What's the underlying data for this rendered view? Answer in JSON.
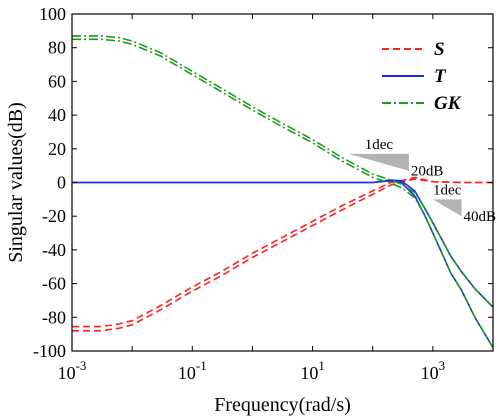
{
  "chart_data": {
    "type": "line",
    "xlabel": "Frequency(rad/s)",
    "ylabel": "Singular values(dB)",
    "xscale": "log",
    "xlim": [
      0.001,
      10000
    ],
    "ylim": [
      -100,
      100
    ],
    "yticks": [
      -100,
      -80,
      -60,
      -40,
      -20,
      0,
      20,
      40,
      60,
      80,
      100
    ],
    "ytick_labels": [
      "-100",
      "-80",
      "-60",
      "-40",
      "-20",
      "0",
      "20",
      "40",
      "60",
      "80",
      "100"
    ],
    "xticks": [
      0.001,
      0.1,
      10,
      1000
    ],
    "xtick_labels": [
      {
        "base": "10",
        "exp": "-3"
      },
      {
        "base": "10",
        "exp": "-1"
      },
      {
        "base": "10",
        "exp": "1"
      },
      {
        "base": "10",
        "exp": "3"
      }
    ],
    "legend_position": "top-right",
    "grid": false,
    "series": [
      {
        "name": "S",
        "color": "#ff2020",
        "style": "dashed",
        "lines": [
          {
            "x": [
              0.001,
              0.003,
              0.006,
              0.01,
              0.03,
              0.1,
              0.3,
              1,
              3,
              10,
              30,
              100,
              200,
              300,
              500,
              1000,
              3000,
              10000
            ],
            "y": [
              -85.5,
              -85.5,
              -84,
              -82,
              -73,
              -62,
              -53,
              -42,
              -33,
              -23,
              -14,
              -5,
              0,
              1,
              3,
              0.5,
              0,
              0
            ]
          },
          {
            "x": [
              0.001,
              0.003,
              0.006,
              0.01,
              0.03,
              0.1,
              0.3,
              1,
              3,
              10,
              30,
              100,
              200,
              300,
              500,
              1000,
              3000,
              10000
            ],
            "y": [
              -88,
              -88,
              -86.5,
              -84.5,
              -75.5,
              -64.5,
              -55.5,
              -44.5,
              -35.5,
              -25.5,
              -16.5,
              -7,
              -1.5,
              0.5,
              2,
              0.5,
              0,
              0
            ]
          }
        ]
      },
      {
        "name": "T",
        "color": "#1a2ee0",
        "style": "solid",
        "lines": [
          {
            "x": [
              0.001,
              1,
              100,
              200,
              300,
              500,
              700,
              1000,
              2000,
              3000,
              5000,
              10000
            ],
            "y": [
              0,
              0,
              0,
              1.5,
              1,
              -5,
              -14,
              -24,
              -44,
              -53,
              -63,
              -74
            ]
          },
          {
            "x": [
              0.001,
              1,
              100,
              200,
              300,
              500,
              700,
              1000,
              2000,
              3000,
              5000,
              10000
            ],
            "y": [
              0,
              0,
              0,
              1,
              0,
              -8,
              -18,
              -30,
              -54,
              -64,
              -80,
              -98
            ]
          }
        ]
      },
      {
        "name": "GK",
        "color": "#1f9a1f",
        "style": "dashdot",
        "lines": [
          {
            "x": [
              0.001,
              0.003,
              0.006,
              0.01,
              0.03,
              0.1,
              0.3,
              1,
              3,
              10,
              30,
              100,
              200,
              300,
              500,
              700,
              1000,
              2000,
              3000,
              5000,
              10000
            ],
            "y": [
              87,
              87,
              86,
              84,
              77,
              66,
              56,
              45,
              35.5,
              25.5,
              15,
              5,
              1.5,
              -1,
              -6,
              -14,
              -24,
              -44,
              -53,
              -63,
              -74
            ]
          },
          {
            "x": [
              0.001,
              0.003,
              0.006,
              0.01,
              0.03,
              0.1,
              0.3,
              1,
              3,
              10,
              30,
              100,
              200,
              300,
              500,
              700,
              1000,
              2000,
              3000,
              5000,
              10000
            ],
            "y": [
              85,
              85,
              84,
              82,
              75,
              64,
              54,
              43,
              33.5,
              23.5,
              13,
              3,
              -0.5,
              -3,
              -9,
              -18,
              -30,
              -54,
              -64,
              -80,
              -98
            ]
          }
        ]
      }
    ],
    "annotations": [
      {
        "name": "slope-20db",
        "run_label": "1dec",
        "rise_label": "20dB",
        "x1": 40,
        "x2": 400,
        "y_top": 17,
        "y_bottom": 7
      },
      {
        "name": "slope-40db",
        "run_label": "1dec",
        "rise_label": "40dB",
        "x1": 1000,
        "x2": 3000,
        "y_top": -10,
        "y_bottom": -20
      }
    ]
  }
}
